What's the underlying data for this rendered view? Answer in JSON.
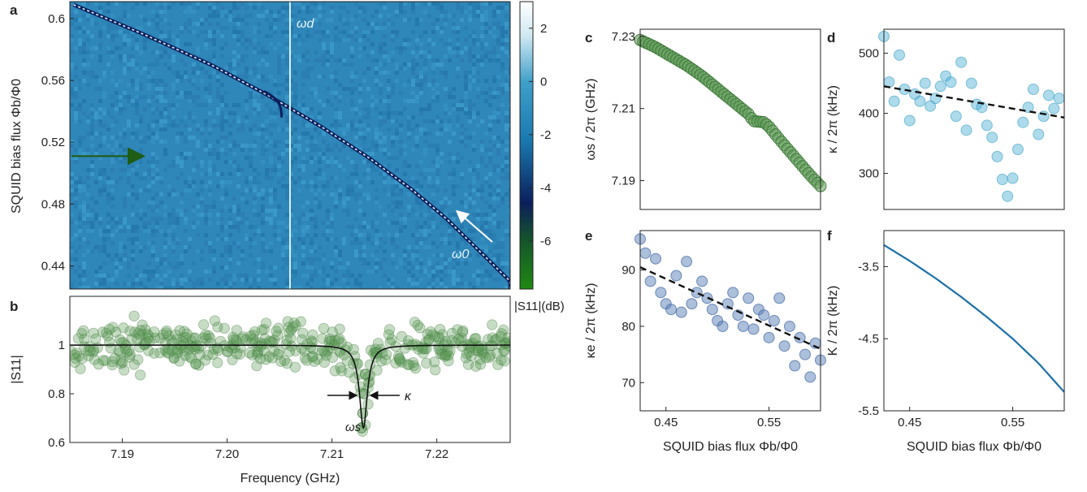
{
  "figure": {
    "panels": [
      {
        "id": "a",
        "letter": "a"
      },
      {
        "id": "b",
        "letter": "b"
      },
      {
        "id": "c",
        "letter": "c"
      },
      {
        "id": "d",
        "letter": "d"
      },
      {
        "id": "e",
        "letter": "e"
      },
      {
        "id": "f",
        "letter": "f"
      }
    ]
  },
  "chart_data": [
    {
      "panel": "a",
      "type": "heatmap",
      "xlabel": "",
      "ylabel": "SQUID bias flux Φb/Φ0",
      "xlim": [
        7.185,
        7.227
      ],
      "ylim": [
        0.425,
        0.611
      ],
      "y_ticks": [
        0.44,
        0.48,
        0.52,
        0.56,
        0.6
      ],
      "y_tick_labels": [
        "0.44",
        "0.48",
        "0.52",
        "0.56",
        "0.6"
      ],
      "colorbar": {
        "label": "|S11|(dB)",
        "range": [
          -7.8,
          3
        ],
        "ticks": [
          2,
          0,
          -2,
          -4,
          -6
        ],
        "tick_labels": [
          "2",
          "0",
          "-2",
          "-4",
          "-6"
        ],
        "colors": [
          "#1f8a12",
          "#0b1f5c",
          "#1a7ab0",
          "#3f9fc9",
          "#cfe8f2",
          "#ffffff"
        ],
        "background": "#2f86b8"
      },
      "resonance_curve": {
        "flux": [
          0.61,
          0.59,
          0.57,
          0.55,
          0.53,
          0.51,
          0.49,
          0.47,
          0.45,
          0.43
        ],
        "freq": [
          7.185,
          7.192,
          7.1985,
          7.204,
          7.209,
          7.2135,
          7.2175,
          7.221,
          7.224,
          7.227
        ]
      },
      "drive_line": {
        "label": "ωd",
        "freq": 7.206
      },
      "omega0_label": "ω0",
      "green_arrow_flux": 0.511
    },
    {
      "panel": "b",
      "type": "scatter",
      "xlabel": "Frequency (GHz)",
      "ylabel": "|S11|",
      "xlim": [
        7.185,
        7.227
      ],
      "ylim": [
        0.6,
        1.2
      ],
      "x_ticks": [
        7.19,
        7.2,
        7.21,
        7.22
      ],
      "x_tick_labels": [
        "7.19",
        "7.20",
        "7.21",
        "7.22"
      ],
      "y_ticks": [
        0.6,
        0.8,
        1.0
      ],
      "y_tick_labels": [
        "0.6",
        "0.8",
        "1"
      ],
      "fit": {
        "resonance_freq": 7.213,
        "baseline": 1.0,
        "min": 0.66,
        "linewidth_ghz": 0.00045
      },
      "data_noise_sd": 0.045,
      "data_points_count": 420,
      "annotations": {
        "omega_s": "ωs",
        "kappa": "κ"
      }
    },
    {
      "panel": "c",
      "type": "scatter",
      "xlabel": "",
      "ylabel": "ωs / 2π (GHz)",
      "xlim": [
        0.425,
        0.6
      ],
      "ylim": [
        7.182,
        7.232
      ],
      "y_ticks": [
        7.19,
        7.21,
        7.23
      ],
      "y_tick_labels": [
        "7.19",
        "7.21",
        "7.23"
      ],
      "x": [
        0.425,
        0.44,
        0.455,
        0.47,
        0.485,
        0.5,
        0.515,
        0.53,
        0.535,
        0.545,
        0.55,
        0.56,
        0.575,
        0.59,
        0.6
      ],
      "y": [
        7.229,
        7.227,
        7.2245,
        7.222,
        7.219,
        7.2155,
        7.212,
        7.2085,
        7.2065,
        7.2062,
        7.205,
        7.2015,
        7.1965,
        7.1915,
        7.1885
      ]
    },
    {
      "panel": "d",
      "type": "scatter",
      "xlabel": "",
      "ylabel": "κ / 2π (kHz)",
      "xlim": [
        0.425,
        0.6
      ],
      "ylim": [
        240,
        540
      ],
      "y_ticks": [
        300,
        400,
        500
      ],
      "y_tick_labels": [
        "300",
        "400",
        "500"
      ],
      "x": [
        0.425,
        0.43,
        0.435,
        0.44,
        0.445,
        0.45,
        0.455,
        0.46,
        0.465,
        0.47,
        0.475,
        0.48,
        0.485,
        0.49,
        0.495,
        0.5,
        0.505,
        0.51,
        0.515,
        0.52,
        0.525,
        0.53,
        0.535,
        0.54,
        0.545,
        0.55,
        0.555,
        0.56,
        0.565,
        0.57,
        0.575,
        0.58,
        0.585,
        0.59,
        0.595
      ],
      "y": [
        528,
        452,
        420,
        497,
        440,
        388,
        432,
        420,
        450,
        412,
        425,
        445,
        462,
        452,
        395,
        485,
        372,
        450,
        415,
        410,
        380,
        360,
        328,
        290,
        262,
        292,
        340,
        385,
        410,
        440,
        365,
        395,
        430,
        408,
        425
      ],
      "fit": {
        "x": [
          0.425,
          0.6
        ],
        "y": [
          445,
          393
        ]
      }
    },
    {
      "panel": "e",
      "type": "scatter",
      "xlabel": "SQUID bias flux Φb/Φ0",
      "ylabel": "κe / 2π (kHz)",
      "xlim": [
        0.425,
        0.6
      ],
      "ylim": [
        65,
        97
      ],
      "x_ticks": [
        0.45,
        0.55
      ],
      "x_tick_labels": [
        "0.45",
        "0.55"
      ],
      "y_ticks": [
        70,
        80,
        90
      ],
      "y_tick_labels": [
        "70",
        "80",
        "90"
      ],
      "x": [
        0.425,
        0.43,
        0.435,
        0.44,
        0.445,
        0.45,
        0.455,
        0.46,
        0.465,
        0.47,
        0.475,
        0.48,
        0.485,
        0.49,
        0.495,
        0.5,
        0.505,
        0.51,
        0.515,
        0.52,
        0.525,
        0.53,
        0.535,
        0.54,
        0.545,
        0.55,
        0.555,
        0.56,
        0.565,
        0.57,
        0.575,
        0.58,
        0.585,
        0.59,
        0.595,
        0.6
      ],
      "y": [
        95.5,
        93,
        88,
        92,
        86,
        84,
        83,
        89,
        82.5,
        91.5,
        84,
        86,
        88,
        85,
        83,
        81,
        80,
        84,
        86,
        82,
        80,
        85,
        79.5,
        83,
        82,
        78,
        81,
        85,
        76.5,
        80,
        73,
        78,
        75,
        71,
        77,
        74
      ],
      "fit": {
        "x": [
          0.425,
          0.6
        ],
        "y": [
          90.5,
          76
        ]
      }
    },
    {
      "panel": "f",
      "type": "line",
      "xlabel": "SQUID bias flux Φb/Φ0",
      "ylabel": "K / 2π (kHz)",
      "xlim": [
        0.425,
        0.6
      ],
      "ylim": [
        -5.5,
        -3.0
      ],
      "x_ticks": [
        0.45,
        0.55
      ],
      "x_tick_labels": [
        "0.45",
        "0.55"
      ],
      "y_ticks": [
        -3.5,
        -4.5,
        -5.5
      ],
      "y_tick_labels": [
        "-3.5",
        "-4.5",
        "-5.5"
      ],
      "x": [
        0.425,
        0.45,
        0.475,
        0.5,
        0.525,
        0.55,
        0.575,
        0.6
      ],
      "y": [
        -3.2,
        -3.42,
        -3.66,
        -3.92,
        -4.2,
        -4.5,
        -4.84,
        -5.24
      ]
    }
  ],
  "colors": {
    "green_point": "#5e9a58",
    "cyan_point": "#4ab0d4",
    "blue_point": "#5a80b8",
    "line_blue": "#1b6fa8",
    "heat_bg": "#2f86b8"
  }
}
